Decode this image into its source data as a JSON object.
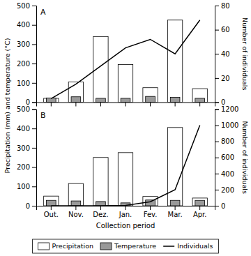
{
  "chart_data": [
    {
      "type": "bar",
      "title": "A",
      "categories": [
        null,
        null,
        null,
        null,
        null,
        null,
        null
      ],
      "series": [
        {
          "name": "Precipitation",
          "color": "white",
          "values": [
            20,
            105,
            340,
            195,
            75,
            425,
            70
          ]
        },
        {
          "name": "Temperature",
          "color": "#999999",
          "values": [
            22,
            28,
            20,
            20,
            30,
            25,
            20
          ]
        },
        {
          "name": "Individuals",
          "type": "line",
          "axis": "y2",
          "color": "black",
          "values": [
            3,
            15,
            30,
            45,
            52,
            40,
            68
          ]
        }
      ],
      "ylabel": "Precipitation (mm) and temperature (°C)",
      "y2label": "Number of individuals",
      "ylim": [
        0,
        500
      ],
      "yticks": [
        0,
        100,
        200,
        300,
        400,
        500
      ],
      "y2lim": [
        0,
        80
      ],
      "y2ticks": [
        0,
        20,
        40,
        60,
        80
      ]
    },
    {
      "type": "bar",
      "title": "B",
      "categories": [
        "Out.",
        "Nov.",
        "Dez.",
        "Jan.",
        "Fev.",
        "Mar.",
        "Apr."
      ],
      "series": [
        {
          "name": "Precipitation",
          "color": "white",
          "values": [
            50,
            115,
            250,
            275,
            48,
            405,
            40
          ]
        },
        {
          "name": "Temperature",
          "color": "#999999",
          "values": [
            28,
            25,
            22,
            15,
            30,
            28,
            28
          ]
        },
        {
          "name": "Individuals",
          "type": "line",
          "axis": "y2",
          "color": "black",
          "values": [
            0,
            0,
            0,
            5,
            50,
            200,
            1000
          ]
        }
      ],
      "xlabel": "Collection period",
      "y2label": "Number of individuals",
      "legend": "bottom",
      "ylim": [
        0,
        500
      ],
      "yticks": [
        0,
        100,
        200,
        300,
        400,
        500
      ],
      "y2lim": [
        0,
        1200
      ],
      "y2ticks": [
        0,
        200,
        400,
        600,
        800,
        1000,
        1200
      ]
    }
  ]
}
